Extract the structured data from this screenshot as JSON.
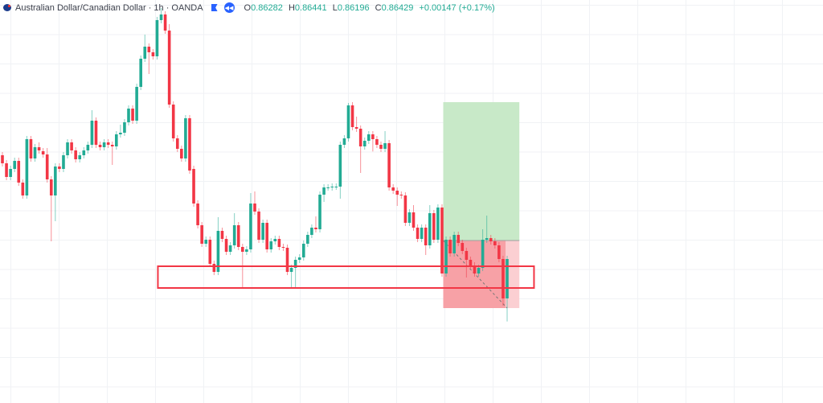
{
  "header": {
    "symbol_icon": "australia-flag-icon",
    "title": "Australian Dollar/Canadian Dollar · 1h · OANDA",
    "marker_icon": "blue-flag-icon",
    "replay_icon": "rewind-icon",
    "open_label": "O",
    "open": "0.86282",
    "high_label": "H",
    "high": "0.86441",
    "low_label": "L",
    "low": "0.86196",
    "close_label": "C",
    "close": "0.86429",
    "change": "+0.00147 (+0.17%)"
  },
  "colors": {
    "up": "#22ab94",
    "down": "#f23645",
    "zone": "#f23645",
    "target": "#c8e9c8",
    "stop": "#f7a1a6"
  },
  "chart_data": {
    "type": "candlestick",
    "symbol": "AUDCAD",
    "interval": "1h",
    "fields": [
      "open",
      "high",
      "low",
      "close"
    ],
    "candles": [
      [
        0.86816,
        0.86828,
        0.86774,
        0.86786
      ],
      [
        0.86786,
        0.86798,
        0.86723,
        0.86735
      ],
      [
        0.86735,
        0.86777,
        0.86723,
        0.86765
      ],
      [
        0.86765,
        0.86807,
        0.86753,
        0.86795
      ],
      [
        0.86795,
        0.86807,
        0.86702,
        0.86714
      ],
      [
        0.86714,
        0.86726,
        0.86654,
        0.86666
      ],
      [
        0.86666,
        0.86888,
        0.86654,
        0.86876
      ],
      [
        0.86876,
        0.86888,
        0.86792,
        0.86804
      ],
      [
        0.86804,
        0.86858,
        0.86792,
        0.86846
      ],
      [
        0.86846,
        0.86864,
        0.86822,
        0.86834
      ],
      [
        0.86831,
        0.86843,
        0.86807,
        0.86819
      ],
      [
        0.86819,
        0.86843,
        0.86714,
        0.86726
      ],
      [
        0.86726,
        0.86738,
        0.86495,
        0.86666
      ],
      [
        0.86666,
        0.86786,
        0.8657,
        0.86774
      ],
      [
        0.86774,
        0.86786,
        0.86753,
        0.86765
      ],
      [
        0.86765,
        0.86828,
        0.86753,
        0.86816
      ],
      [
        0.86816,
        0.86876,
        0.86804,
        0.86864
      ],
      [
        0.86864,
        0.86876,
        0.86822,
        0.86834
      ],
      [
        0.86834,
        0.86846,
        0.86789,
        0.86801
      ],
      [
        0.86801,
        0.86828,
        0.86789,
        0.86816
      ],
      [
        0.86816,
        0.86846,
        0.86804,
        0.86834
      ],
      [
        0.86834,
        0.86867,
        0.86822,
        0.86855
      ],
      [
        0.86855,
        0.86984,
        0.86843,
        0.86945
      ],
      [
        0.86945,
        0.86957,
        0.86843,
        0.86855
      ],
      [
        0.86855,
        0.86867,
        0.86834,
        0.86846
      ],
      [
        0.86846,
        0.86876,
        0.86834,
        0.86864
      ],
      [
        0.86864,
        0.86876,
        0.86843,
        0.86855
      ],
      [
        0.86855,
        0.86867,
        0.8678,
        0.86849
      ],
      [
        0.86849,
        0.86906,
        0.86837,
        0.86894
      ],
      [
        0.86894,
        0.8693,
        0.86882,
        0.869
      ],
      [
        0.869,
        0.86951,
        0.86888,
        0.86939
      ],
      [
        0.86939,
        0.87002,
        0.86927,
        0.8699
      ],
      [
        0.8699,
        0.87002,
        0.86933,
        0.86945
      ],
      [
        0.86945,
        0.87083,
        0.86933,
        0.87071
      ],
      [
        0.87071,
        0.87188,
        0.87059,
        0.87176
      ],
      [
        0.87176,
        0.87266,
        0.87164,
        0.87221
      ],
      [
        0.87221,
        0.87233,
        0.87119,
        0.872
      ],
      [
        0.872,
        0.87212,
        0.87173,
        0.87185
      ],
      [
        0.87185,
        0.87332,
        0.87173,
        0.8732
      ],
      [
        0.8732,
        0.87365,
        0.87308,
        0.87341
      ],
      [
        0.87341,
        0.87353,
        0.87269,
        0.87281
      ],
      [
        0.87281,
        0.87305,
        0.86993,
        0.87005
      ],
      [
        0.87005,
        0.87017,
        0.86867,
        0.86879
      ],
      [
        0.86879,
        0.86891,
        0.86828,
        0.8684
      ],
      [
        0.8684,
        0.86852,
        0.86792,
        0.86804
      ],
      [
        0.86804,
        0.86966,
        0.86792,
        0.86954
      ],
      [
        0.86954,
        0.86966,
        0.86747,
        0.86759
      ],
      [
        0.86765,
        0.86777,
        0.86624,
        0.86636
      ],
      [
        0.86636,
        0.86648,
        0.86543,
        0.86555
      ],
      [
        0.86555,
        0.86567,
        0.86474,
        0.86486
      ],
      [
        0.86486,
        0.86513,
        0.86474,
        0.86501
      ],
      [
        0.86501,
        0.86513,
        0.86399,
        0.86411
      ],
      [
        0.86411,
        0.86423,
        0.86369,
        0.86381
      ],
      [
        0.86381,
        0.86585,
        0.86369,
        0.86534
      ],
      [
        0.86534,
        0.86546,
        0.86492,
        0.86504
      ],
      [
        0.86504,
        0.86516,
        0.86444,
        0.86456
      ],
      [
        0.86456,
        0.86492,
        0.86444,
        0.8648
      ],
      [
        0.8648,
        0.866,
        0.86468,
        0.86555
      ],
      [
        0.86555,
        0.86567,
        0.86462,
        0.86474
      ],
      [
        0.86474,
        0.86486,
        0.86321,
        0.86456
      ],
      [
        0.86456,
        0.86477,
        0.86444,
        0.86465
      ],
      [
        0.86465,
        0.86675,
        0.86453,
        0.86636
      ],
      [
        0.86636,
        0.86681,
        0.86594,
        0.86606
      ],
      [
        0.86606,
        0.86618,
        0.86489,
        0.86501
      ],
      [
        0.86501,
        0.86576,
        0.86489,
        0.86564
      ],
      [
        0.86564,
        0.86576,
        0.86453,
        0.86465
      ],
      [
        0.86465,
        0.86507,
        0.86453,
        0.86495
      ],
      [
        0.86495,
        0.86516,
        0.86483,
        0.86504
      ],
      [
        0.86504,
        0.86516,
        0.86462,
        0.86474
      ],
      [
        0.86474,
        0.86486,
        0.86459,
        0.86471
      ],
      [
        0.86471,
        0.86483,
        0.86369,
        0.86381
      ],
      [
        0.86381,
        0.86408,
        0.86321,
        0.86396
      ],
      [
        0.86396,
        0.86438,
        0.86321,
        0.86426
      ],
      [
        0.86426,
        0.86447,
        0.86414,
        0.86435
      ],
      [
        0.86435,
        0.86498,
        0.86423,
        0.86486
      ],
      [
        0.86486,
        0.86531,
        0.86474,
        0.86519
      ],
      [
        0.86519,
        0.86558,
        0.86507,
        0.86546
      ],
      [
        0.86546,
        0.86588,
        0.86528,
        0.8654
      ],
      [
        0.8654,
        0.86681,
        0.86528,
        0.86669
      ],
      [
        0.86669,
        0.86708,
        0.86642,
        0.86696
      ],
      [
        0.86696,
        0.86708,
        0.86684,
        0.86696
      ],
      [
        0.86696,
        0.86711,
        0.86684,
        0.86699
      ],
      [
        0.86699,
        0.86711,
        0.86687,
        0.86699
      ],
      [
        0.86699,
        0.86867,
        0.86654,
        0.86855
      ],
      [
        0.86855,
        0.86891,
        0.86843,
        0.86879
      ],
      [
        0.86879,
        0.87011,
        0.86867,
        0.87002
      ],
      [
        0.87002,
        0.87014,
        0.86909,
        0.86921
      ],
      [
        0.86921,
        0.8696,
        0.86903,
        0.86915
      ],
      [
        0.86915,
        0.86927,
        0.8675,
        0.86849
      ],
      [
        0.86849,
        0.86882,
        0.86837,
        0.8687
      ],
      [
        0.8687,
        0.86906,
        0.86858,
        0.86894
      ],
      [
        0.86894,
        0.86906,
        0.8683,
        0.86876
      ],
      [
        0.86876,
        0.86888,
        0.86843,
        0.86855
      ],
      [
        0.86855,
        0.86867,
        0.86828,
        0.8684
      ],
      [
        0.8684,
        0.86906,
        0.86828,
        0.86861
      ],
      [
        0.86861,
        0.86873,
        0.86684,
        0.86696
      ],
      [
        0.86696,
        0.86708,
        0.86672,
        0.86684
      ],
      [
        0.86684,
        0.86696,
        0.86627,
        0.86669
      ],
      [
        0.86669,
        0.86681,
        0.86654,
        0.86666
      ],
      [
        0.86666,
        0.86678,
        0.86552,
        0.86564
      ],
      [
        0.86564,
        0.86615,
        0.86552,
        0.86603
      ],
      [
        0.86603,
        0.8663,
        0.86534,
        0.86546
      ],
      [
        0.86546,
        0.86558,
        0.86492,
        0.86504
      ],
      [
        0.86504,
        0.86558,
        0.86492,
        0.86546
      ],
      [
        0.86546,
        0.86558,
        0.86444,
        0.8648
      ],
      [
        0.8648,
        0.8663,
        0.86468,
        0.866
      ],
      [
        0.866,
        0.86612,
        0.86489,
        0.86501
      ],
      [
        0.86501,
        0.86633,
        0.86489,
        0.86621
      ],
      [
        0.86621,
        0.86633,
        0.86363,
        0.86375
      ],
      [
        0.86375,
        0.86513,
        0.86363,
        0.86501
      ],
      [
        0.86501,
        0.86513,
        0.86438,
        0.8645
      ],
      [
        0.8645,
        0.86531,
        0.86438,
        0.86519
      ],
      [
        0.86519,
        0.86531,
        0.86477,
        0.86489
      ],
      [
        0.86489,
        0.86501,
        0.86447,
        0.86459
      ],
      [
        0.86459,
        0.86471,
        0.8636,
        0.86426
      ],
      [
        0.86426,
        0.86438,
        0.86393,
        0.86405
      ],
      [
        0.86405,
        0.86417,
        0.86363,
        0.86375
      ],
      [
        0.86375,
        0.86408,
        0.86363,
        0.86396
      ],
      [
        0.86396,
        0.8654,
        0.86384,
        0.86501
      ],
      [
        0.86501,
        0.86591,
        0.86489,
        0.86507
      ],
      [
        0.86507,
        0.86519,
        0.86483,
        0.86495
      ],
      [
        0.86495,
        0.86507,
        0.86468,
        0.8648
      ],
      [
        0.8648,
        0.86492,
        0.86417,
        0.86429
      ],
      [
        0.86429,
        0.86441,
        0.86255,
        0.86282
      ],
      [
        0.86282,
        0.86441,
        0.86196,
        0.86429
      ]
    ],
    "support_zone": {
      "price_top": 0.86402,
      "price_bottom": 0.86321,
      "from_bar": 38.2,
      "to_bar": 130.6
    },
    "long_position": {
      "entry": 0.86498,
      "target": 0.87014,
      "stop": 0.86246,
      "from_bar": 108.3,
      "to_bar": 127
    }
  }
}
